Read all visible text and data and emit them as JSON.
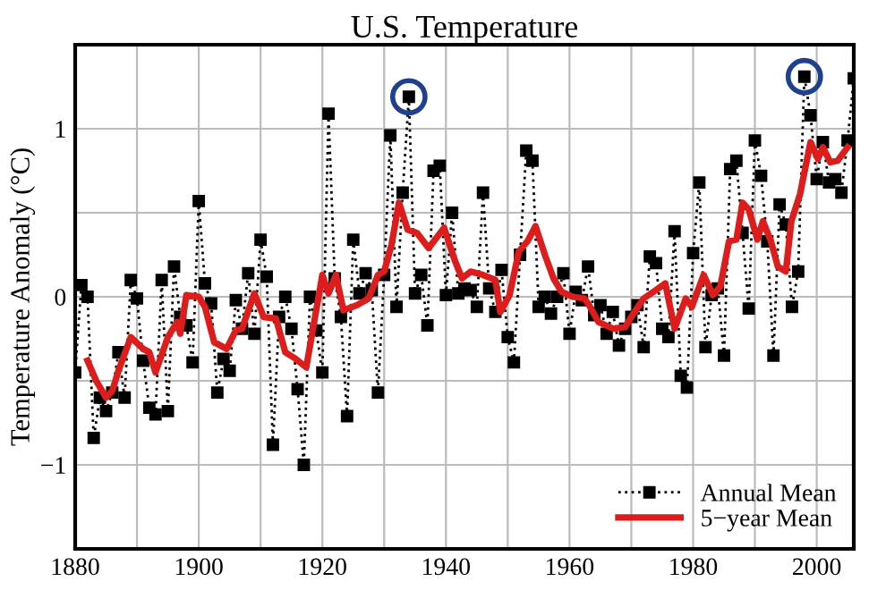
{
  "chart_data": {
    "type": "line",
    "title": "U.S. Temperature",
    "ylabel": "Temperature Anomaly (°C)",
    "xlim": [
      1880,
      2006
    ],
    "xticks": [
      1880,
      {
        "value": 1890,
        "label": null
      },
      1900,
      {
        "value": 1910,
        "label": null
      },
      1920,
      {
        "value": 1930,
        "label": null
      },
      1940,
      {
        "value": 1950,
        "label": null
      },
      1960,
      {
        "value": 1970,
        "label": null
      },
      1980,
      {
        "value": 1990,
        "label": null
      },
      2000
    ],
    "ylim": [
      -1.5,
      1.5
    ],
    "yticks": [
      {
        "value": -1,
        "label": "−1"
      },
      {
        "value": -0.5,
        "label": null
      },
      0,
      {
        "value": 0.5,
        "label": null
      },
      1
    ],
    "grid": true,
    "legend": "bottom right",
    "series": [
      {
        "name": "Annual Mean",
        "color": "#000000",
        "marker": "square",
        "line_style": "dotted",
        "x": [
          1880,
          1881,
          1882,
          1883,
          1884,
          1885,
          1886,
          1887,
          1888,
          1889,
          1890,
          1891,
          1892,
          1893,
          1894,
          1895,
          1896,
          1897,
          1898,
          1899,
          1900,
          1901,
          1902,
          1903,
          1904,
          1905,
          1906,
          1907,
          1908,
          1909,
          1910,
          1911,
          1912,
          1913,
          1914,
          1915,
          1916,
          1917,
          1918,
          1919,
          1920,
          1921,
          1922,
          1923,
          1924,
          1925,
          1926,
          1927,
          1928,
          1929,
          1930,
          1931,
          1932,
          1933,
          1934,
          1935,
          1936,
          1937,
          1938,
          1939,
          1940,
          1941,
          1942,
          1943,
          1944,
          1945,
          1946,
          1947,
          1948,
          1949,
          1950,
          1951,
          1952,
          1953,
          1954,
          1955,
          1956,
          1957,
          1958,
          1959,
          1960,
          1961,
          1962,
          1963,
          1964,
          1965,
          1966,
          1967,
          1968,
          1969,
          1970,
          1971,
          1972,
          1973,
          1974,
          1975,
          1976,
          1977,
          1978,
          1979,
          1980,
          1981,
          1982,
          1983,
          1984,
          1985,
          1986,
          1987,
          1988,
          1989,
          1990,
          1991,
          1992,
          1993,
          1994,
          1995,
          1996,
          1997,
          1998,
          1999,
          2000,
          2001,
          2002,
          2003,
          2004,
          2005,
          2006
        ],
        "values": [
          -0.45,
          0.07,
          0.0,
          -0.84,
          -0.6,
          -0.68,
          -0.57,
          -0.33,
          -0.6,
          0.1,
          -0.01,
          -0.38,
          -0.66,
          -0.7,
          0.1,
          -0.68,
          0.18,
          -0.12,
          -0.17,
          -0.39,
          0.57,
          0.08,
          -0.04,
          -0.57,
          -0.37,
          -0.44,
          -0.02,
          -0.19,
          0.14,
          -0.22,
          0.34,
          0.12,
          -0.88,
          -0.12,
          0.0,
          -0.19,
          -0.55,
          -1.0,
          0.0,
          -0.2,
          -0.45,
          1.09,
          0.11,
          -0.12,
          -0.71,
          0.34,
          0.02,
          0.14,
          0.04,
          -0.57,
          0.13,
          0.96,
          -0.06,
          0.62,
          1.19,
          0.02,
          0.13,
          -0.17,
          0.75,
          0.78,
          0.01,
          0.5,
          0.02,
          0.05,
          0.04,
          -0.06,
          0.62,
          0.05,
          -0.09,
          0.16,
          -0.24,
          -0.39,
          0.25,
          0.87,
          0.81,
          -0.06,
          0.0,
          -0.1,
          0.0,
          0.14,
          -0.22,
          0.03,
          -0.02,
          0.18,
          -0.11,
          -0.05,
          -0.22,
          -0.09,
          -0.29,
          -0.19,
          -0.12,
          -0.05,
          -0.3,
          0.24,
          0.2,
          -0.19,
          -0.24,
          0.39,
          -0.47,
          -0.54,
          0.26,
          0.68,
          -0.3,
          0.01,
          0.05,
          -0.35,
          0.76,
          0.81,
          0.38,
          -0.07,
          0.93,
          0.72,
          0.33,
          -0.35,
          0.55,
          0.43,
          -0.06,
          0.15,
          1.31,
          1.08,
          0.7,
          0.92,
          0.68,
          0.7,
          0.62,
          0.93,
          1.3
        ]
      },
      {
        "name": "5−year Mean",
        "color": "#dd1c1c",
        "marker": "none",
        "line_style": "solid",
        "x": [
          1882,
          1883.4,
          1885,
          1886,
          1887,
          1889,
          1891,
          1892,
          1893,
          1895,
          1896.5,
          1897,
          1898,
          1900,
          1901,
          1902.5,
          1904.5,
          1906,
          1907,
          1909,
          1910.5,
          1912.5,
          1914,
          1915.7,
          1917.4,
          1920,
          1921,
          1922.2,
          1923.4,
          1925.6,
          1927.5,
          1929,
          1930,
          1931.2,
          1932.4,
          1933.8,
          1935.3,
          1937.2,
          1939.7,
          1941.4,
          1942.6,
          1944,
          1946,
          1948,
          1948.8,
          1950.3,
          1951.8,
          1953.2,
          1954.5,
          1956.1,
          1957.4,
          1958.7,
          1960.5,
          1962.4,
          1963,
          1964.7,
          1967.1,
          1969,
          1970,
          1972,
          1974,
          1975.5,
          1977,
          1978.8,
          1979.8,
          1981.7,
          1983.2,
          1984.4,
          1985.8,
          1987,
          1988,
          1989,
          1990.4,
          1991.3,
          1992.6,
          1993.7,
          1995,
          1995.9,
          1997.3,
          1999,
          2000.2,
          2001,
          2002.2,
          2003.4,
          2005
        ],
        "values": [
          -0.38,
          -0.5,
          -0.6,
          -0.56,
          -0.44,
          -0.24,
          -0.31,
          -0.33,
          -0.45,
          -0.24,
          -0.15,
          -0.22,
          0.01,
          0.0,
          -0.06,
          -0.27,
          -0.31,
          -0.2,
          -0.19,
          0.02,
          -0.12,
          -0.13,
          -0.33,
          -0.37,
          -0.42,
          0.13,
          0.02,
          0.13,
          -0.08,
          -0.05,
          -0.01,
          0.13,
          0.15,
          0.31,
          0.56,
          0.4,
          0.38,
          0.29,
          0.41,
          0.22,
          0.11,
          0.15,
          0.13,
          0.1,
          -0.09,
          0.01,
          0.27,
          0.33,
          0.42,
          0.24,
          0.11,
          0.03,
          0.0,
          -0.01,
          -0.04,
          -0.15,
          -0.19,
          -0.18,
          -0.12,
          -0.01,
          0.04,
          0.08,
          -0.19,
          -0.01,
          -0.06,
          0.13,
          0.01,
          0.06,
          0.33,
          0.34,
          0.56,
          0.52,
          0.34,
          0.45,
          0.33,
          0.18,
          0.15,
          0.45,
          0.61,
          0.92,
          0.82,
          0.89,
          0.8,
          0.81,
          0.89
        ]
      },
      {
        "type": "scatter",
        "color": "#1f3f8f",
        "marker": "circle",
        "x": [
          1934,
          1998
        ],
        "values": [
          1.19,
          1.31
        ]
      }
    ]
  }
}
